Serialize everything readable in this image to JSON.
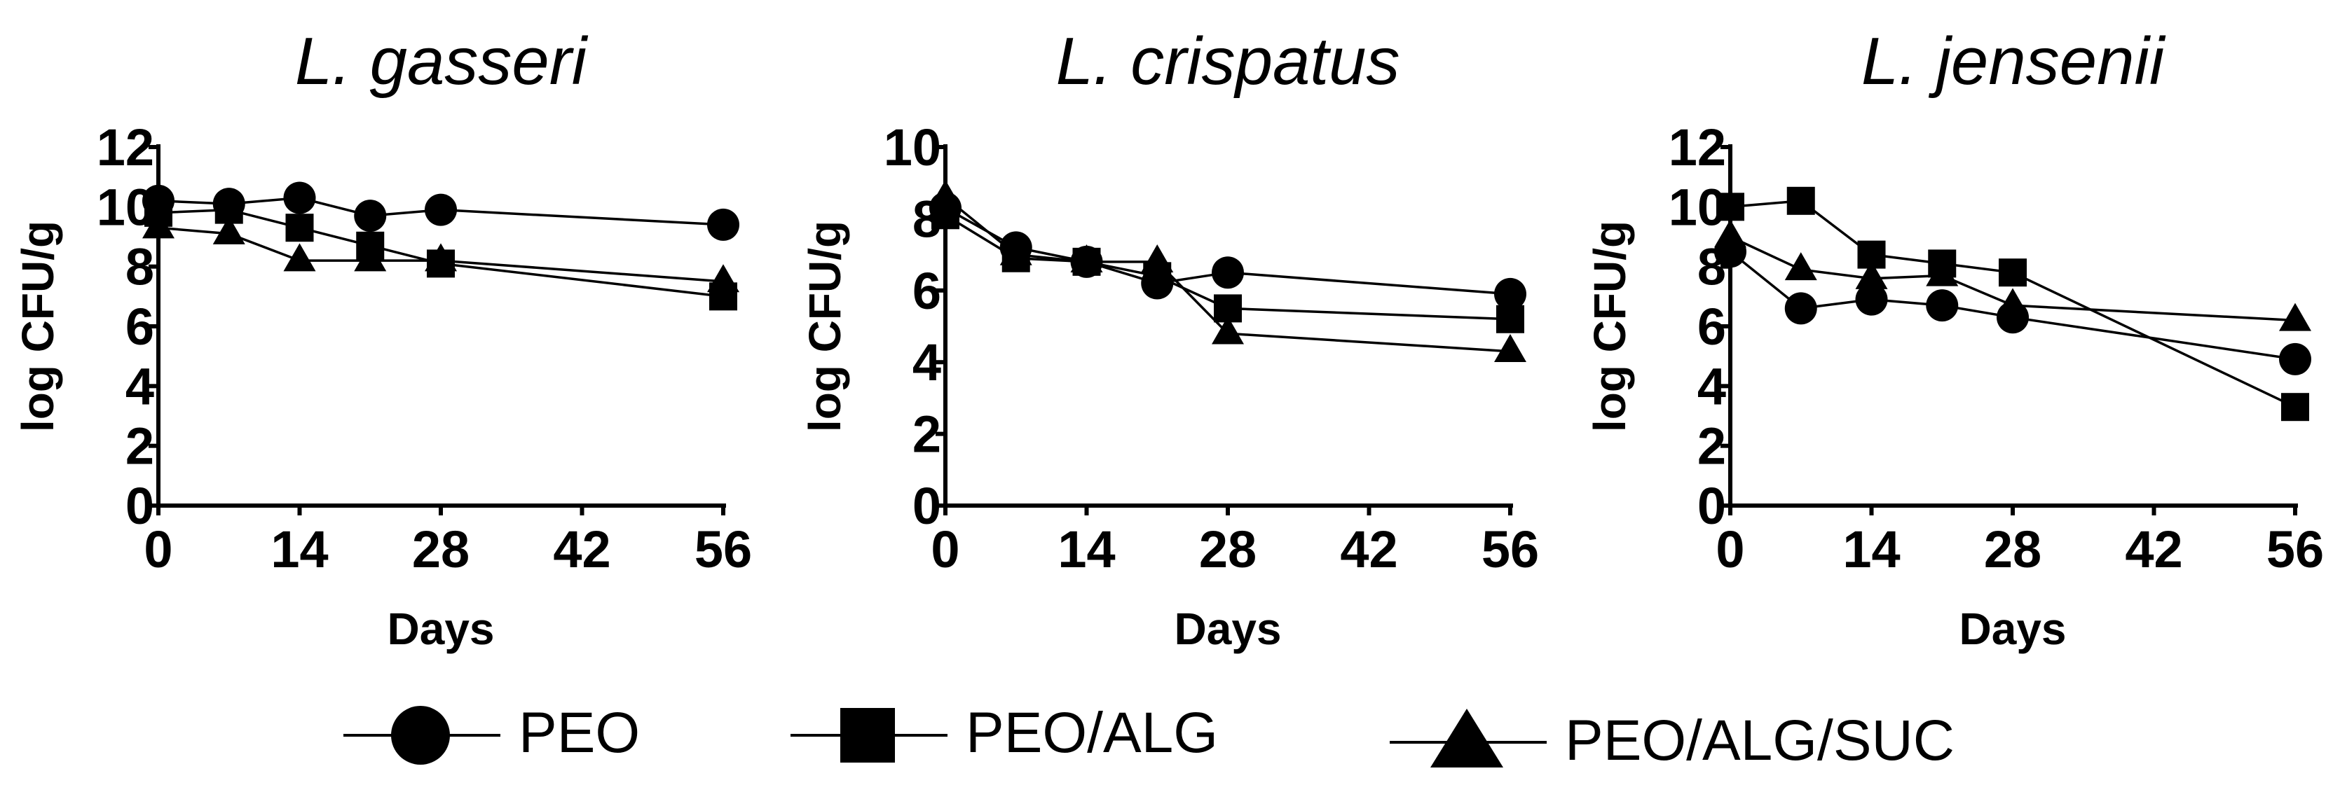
{
  "chart_data": [
    {
      "type": "line",
      "title": "L. gasseri",
      "xlabel": "Days",
      "ylabel": "log CFU/g",
      "xlim": [
        0,
        56
      ],
      "ylim": [
        0,
        12
      ],
      "xticks": [
        0,
        14,
        28,
        42,
        56
      ],
      "yticks": [
        0,
        2,
        4,
        6,
        8,
        10,
        12
      ],
      "series": [
        {
          "marker": "circle",
          "x": [
            0,
            7,
            14,
            21,
            28,
            56
          ],
          "y": [
            10.2,
            10.1,
            10.3,
            9.7,
            9.9,
            9.4
          ]
        },
        {
          "marker": "square",
          "x": [
            0,
            7,
            14,
            21,
            28,
            56
          ],
          "y": [
            9.8,
            9.9,
            9.3,
            8.7,
            8.1,
            7.0
          ]
        },
        {
          "marker": "triangle",
          "x": [
            0,
            7,
            14,
            21,
            28,
            56
          ],
          "y": [
            9.3,
            9.1,
            8.2,
            8.2,
            8.2,
            7.5
          ]
        }
      ]
    },
    {
      "type": "line",
      "title": "L. crispatus",
      "xlabel": "Days",
      "ylabel": "log CFU/g",
      "xlim": [
        0,
        56
      ],
      "ylim": [
        0,
        10
      ],
      "xticks": [
        0,
        14,
        28,
        42,
        56
      ],
      "yticks": [
        0,
        2,
        4,
        6,
        8,
        10
      ],
      "series": [
        {
          "marker": "circle",
          "x": [
            0,
            7,
            14,
            21,
            28,
            56
          ],
          "y": [
            8.3,
            7.2,
            6.8,
            6.2,
            6.5,
            5.9
          ]
        },
        {
          "marker": "square",
          "x": [
            0,
            7,
            14,
            21,
            28,
            56
          ],
          "y": [
            8.1,
            6.9,
            6.8,
            6.4,
            5.5,
            5.2
          ]
        },
        {
          "marker": "triangle",
          "x": [
            0,
            7,
            14,
            21,
            28,
            56
          ],
          "y": [
            8.6,
            7.0,
            6.8,
            6.8,
            4.8,
            4.3
          ]
        }
      ]
    },
    {
      "type": "line",
      "title": "L. jensenii",
      "xlabel": "Days",
      "ylabel": "log CFU/g",
      "xlim": [
        0,
        56
      ],
      "ylim": [
        0,
        12
      ],
      "xticks": [
        0,
        14,
        28,
        42,
        56
      ],
      "yticks": [
        0,
        2,
        4,
        6,
        8,
        10,
        12
      ],
      "series": [
        {
          "marker": "circle",
          "x": [
            0,
            7,
            14,
            21,
            28,
            56
          ],
          "y": [
            8.5,
            6.6,
            6.9,
            6.7,
            6.3,
            4.9
          ]
        },
        {
          "marker": "square",
          "x": [
            0,
            7,
            14,
            21,
            28,
            56
          ],
          "y": [
            10.0,
            10.2,
            8.4,
            8.1,
            7.8,
            3.3
          ]
        },
        {
          "marker": "triangle",
          "x": [
            0,
            7,
            14,
            21,
            28,
            56
          ],
          "y": [
            9.0,
            7.9,
            7.6,
            7.7,
            6.7,
            6.2
          ]
        }
      ]
    }
  ],
  "legend": {
    "placement": "bottom",
    "items": [
      {
        "label": "PEO",
        "marker": "circle"
      },
      {
        "label": "PEO/ALG",
        "marker": "square"
      },
      {
        "label": "PEO/ALG/SUC",
        "marker": "triangle"
      }
    ]
  }
}
